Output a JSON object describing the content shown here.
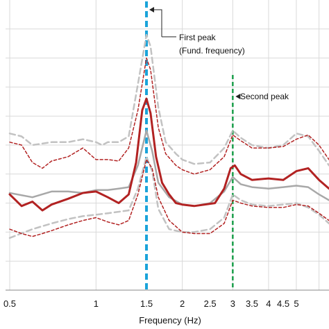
{
  "chart_data": {
    "type": "line",
    "xlabel": "Frequency (Hz)",
    "x_scale": "log",
    "xlim": [
      0.5,
      6.5
    ],
    "x_ticks": [
      0.5,
      1,
      1.5,
      2,
      2.5,
      3,
      3.5,
      4,
      4.5,
      5
    ],
    "x_tick_labels": [
      "0.5",
      "1",
      "1.5",
      "2",
      "2.5",
      "3",
      "3.5",
      "4",
      "4.5",
      "5"
    ],
    "x_gridlines": [
      0.5,
      1,
      2,
      3,
      4,
      5,
      6
    ],
    "ylim": [
      0,
      10
    ],
    "y_gridlines": [
      1,
      2,
      3,
      4,
      5,
      6,
      7,
      8,
      9
    ],
    "grid": true,
    "annotations": [
      {
        "id": "first",
        "line1": "First peak",
        "line2": "(Fund. frequency)",
        "x": 1.5,
        "color": "#1aa3d9"
      },
      {
        "id": "second",
        "line1": "Second peak",
        "line2": "",
        "x": 3.0,
        "color": "#1a9e4a"
      }
    ],
    "series": [
      {
        "id": "mean-red",
        "color": "#b22222",
        "style": "solid-thick",
        "points": [
          [
            0.5,
            3.3
          ],
          [
            0.55,
            2.9
          ],
          [
            0.6,
            3.05
          ],
          [
            0.65,
            2.75
          ],
          [
            0.7,
            2.95
          ],
          [
            0.8,
            3.15
          ],
          [
            0.9,
            3.35
          ],
          [
            1.0,
            3.4
          ],
          [
            1.1,
            3.2
          ],
          [
            1.2,
            3.0
          ],
          [
            1.3,
            3.3
          ],
          [
            1.38,
            4.4
          ],
          [
            1.45,
            6.2
          ],
          [
            1.5,
            6.6
          ],
          [
            1.55,
            6.1
          ],
          [
            1.62,
            4.6
          ],
          [
            1.7,
            3.7
          ],
          [
            1.8,
            3.3
          ],
          [
            1.9,
            3.0
          ],
          [
            2.0,
            2.95
          ],
          [
            2.2,
            2.9
          ],
          [
            2.4,
            2.95
          ],
          [
            2.6,
            3.0
          ],
          [
            2.8,
            3.5
          ],
          [
            2.95,
            4.2
          ],
          [
            3.05,
            4.3
          ],
          [
            3.2,
            4.0
          ],
          [
            3.5,
            3.8
          ],
          [
            4.0,
            3.85
          ],
          [
            4.5,
            3.8
          ],
          [
            5.0,
            4.1
          ],
          [
            5.5,
            4.2
          ],
          [
            6.0,
            3.8
          ],
          [
            6.5,
            3.5
          ]
        ]
      },
      {
        "id": "mean-gray",
        "color": "#a8a8a8",
        "style": "solid",
        "points": [
          [
            0.5,
            3.35
          ],
          [
            0.6,
            3.2
          ],
          [
            0.7,
            3.4
          ],
          [
            0.8,
            3.4
          ],
          [
            0.9,
            3.35
          ],
          [
            1.0,
            3.45
          ],
          [
            1.1,
            3.45
          ],
          [
            1.2,
            3.5
          ],
          [
            1.3,
            3.55
          ],
          [
            1.4,
            4.3
          ],
          [
            1.5,
            5.5
          ],
          [
            1.57,
            4.8
          ],
          [
            1.65,
            3.7
          ],
          [
            1.8,
            3.2
          ],
          [
            2.0,
            2.95
          ],
          [
            2.2,
            2.9
          ],
          [
            2.5,
            3.0
          ],
          [
            2.8,
            3.4
          ],
          [
            3.0,
            3.9
          ],
          [
            3.2,
            3.65
          ],
          [
            3.5,
            3.55
          ],
          [
            4.0,
            3.5
          ],
          [
            4.5,
            3.55
          ],
          [
            5.0,
            3.6
          ],
          [
            5.5,
            3.55
          ],
          [
            6.0,
            3.3
          ],
          [
            6.5,
            3.1
          ]
        ]
      },
      {
        "id": "band-upper-red",
        "color": "#b22222",
        "style": "dashed",
        "points": [
          [
            0.5,
            5.1
          ],
          [
            0.55,
            5.0
          ],
          [
            0.6,
            4.4
          ],
          [
            0.65,
            4.2
          ],
          [
            0.7,
            4.45
          ],
          [
            0.8,
            4.6
          ],
          [
            0.9,
            4.9
          ],
          [
            1.0,
            4.5
          ],
          [
            1.1,
            4.5
          ],
          [
            1.2,
            4.45
          ],
          [
            1.3,
            4.9
          ],
          [
            1.4,
            6.2
          ],
          [
            1.5,
            8.0
          ],
          [
            1.55,
            7.6
          ],
          [
            1.65,
            5.6
          ],
          [
            1.75,
            4.7
          ],
          [
            1.9,
            4.3
          ],
          [
            2.0,
            4.15
          ],
          [
            2.2,
            4.0
          ],
          [
            2.5,
            4.15
          ],
          [
            2.8,
            4.6
          ],
          [
            3.0,
            5.35
          ],
          [
            3.2,
            5.15
          ],
          [
            3.5,
            4.9
          ],
          [
            4.0,
            4.9
          ],
          [
            4.5,
            4.95
          ],
          [
            5.0,
            5.2
          ],
          [
            5.5,
            5.35
          ],
          [
            6.0,
            5.0
          ],
          [
            6.5,
            4.5
          ]
        ]
      },
      {
        "id": "band-lower-red",
        "color": "#b22222",
        "style": "dashed",
        "points": [
          [
            0.5,
            2.1
          ],
          [
            0.55,
            1.95
          ],
          [
            0.6,
            1.85
          ],
          [
            0.65,
            1.95
          ],
          [
            0.7,
            2.05
          ],
          [
            0.8,
            2.25
          ],
          [
            0.9,
            2.4
          ],
          [
            1.0,
            2.5
          ],
          [
            1.1,
            2.35
          ],
          [
            1.2,
            2.25
          ],
          [
            1.3,
            2.4
          ],
          [
            1.4,
            3.3
          ],
          [
            1.5,
            4.5
          ],
          [
            1.57,
            4.2
          ],
          [
            1.65,
            3.2
          ],
          [
            1.8,
            2.4
          ],
          [
            2.0,
            2.0
          ],
          [
            2.2,
            1.95
          ],
          [
            2.5,
            1.95
          ],
          [
            2.8,
            2.3
          ],
          [
            3.0,
            3.1
          ],
          [
            3.2,
            3.0
          ],
          [
            3.5,
            2.9
          ],
          [
            4.0,
            2.85
          ],
          [
            4.5,
            2.85
          ],
          [
            5.0,
            2.95
          ],
          [
            5.5,
            2.9
          ],
          [
            6.0,
            2.65
          ],
          [
            6.5,
            2.4
          ]
        ]
      },
      {
        "id": "band-upper-gray",
        "color": "#c2c2c2",
        "style": "dashed-thick",
        "points": [
          [
            0.5,
            5.4
          ],
          [
            0.55,
            5.3
          ],
          [
            0.6,
            5.0
          ],
          [
            0.7,
            5.1
          ],
          [
            0.8,
            5.1
          ],
          [
            0.9,
            5.2
          ],
          [
            1.0,
            5.1
          ],
          [
            1.05,
            5.0
          ],
          [
            1.1,
            5.1
          ],
          [
            1.2,
            5.1
          ],
          [
            1.3,
            5.3
          ],
          [
            1.4,
            7.1
          ],
          [
            1.5,
            8.8
          ],
          [
            1.55,
            8.4
          ],
          [
            1.65,
            6.3
          ],
          [
            1.75,
            5.1
          ],
          [
            1.9,
            4.7
          ],
          [
            2.0,
            4.5
          ],
          [
            2.2,
            4.35
          ],
          [
            2.5,
            4.4
          ],
          [
            2.8,
            4.9
          ],
          [
            3.0,
            5.5
          ],
          [
            3.2,
            5.25
          ],
          [
            3.5,
            5.0
          ],
          [
            4.0,
            4.9
          ],
          [
            4.5,
            5.0
          ],
          [
            5.0,
            5.4
          ],
          [
            5.5,
            5.3
          ],
          [
            6.0,
            4.8
          ],
          [
            6.5,
            4.3
          ]
        ]
      },
      {
        "id": "band-lower-gray",
        "color": "#c2c2c2",
        "style": "dashed-thick",
        "points": [
          [
            0.5,
            1.8
          ],
          [
            0.6,
            2.1
          ],
          [
            0.7,
            2.3
          ],
          [
            0.8,
            2.45
          ],
          [
            0.9,
            2.55
          ],
          [
            1.0,
            2.6
          ],
          [
            1.1,
            2.65
          ],
          [
            1.2,
            2.7
          ],
          [
            1.3,
            2.75
          ],
          [
            1.4,
            3.5
          ],
          [
            1.5,
            4.6
          ],
          [
            1.57,
            4.1
          ],
          [
            1.65,
            2.8
          ],
          [
            1.8,
            2.1
          ],
          [
            2.0,
            2.0
          ],
          [
            2.2,
            2.0
          ],
          [
            2.5,
            2.1
          ],
          [
            2.8,
            2.5
          ],
          [
            3.0,
            3.3
          ],
          [
            3.2,
            3.1
          ],
          [
            3.5,
            2.95
          ],
          [
            4.0,
            2.9
          ],
          [
            4.5,
            2.95
          ],
          [
            5.0,
            3.0
          ],
          [
            5.5,
            2.85
          ],
          [
            6.0,
            2.6
          ],
          [
            6.5,
            2.3
          ]
        ]
      }
    ]
  }
}
